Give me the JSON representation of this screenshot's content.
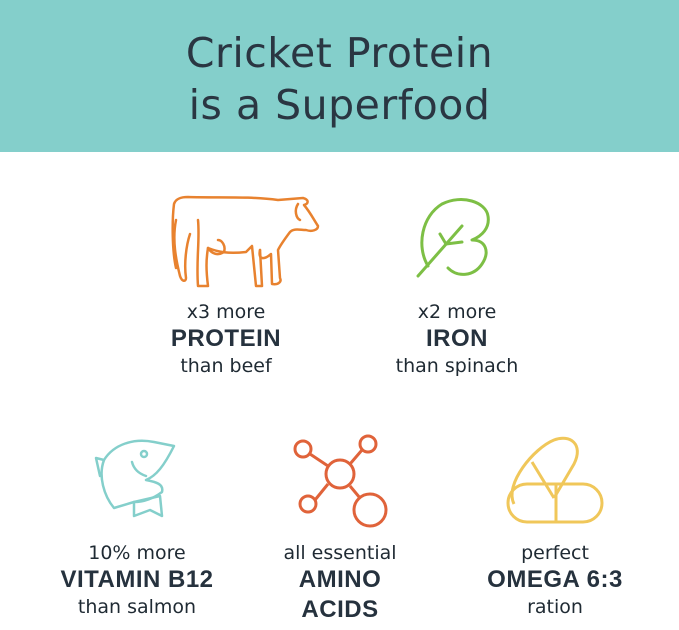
{
  "header": {
    "title_line1": "Cricket Protein",
    "title_line2": "is a Superfood",
    "background": "#84cfcb"
  },
  "items": [
    {
      "pre": "x3 more",
      "main": "PROTEIN",
      "post": "than beef",
      "icon": "cow-icon",
      "color": "#e8822f"
    },
    {
      "pre": "x2 more",
      "main": "IRON",
      "post": "than spinach",
      "icon": "leaf-icon",
      "color": "#7dbf45"
    },
    {
      "pre": "10% more",
      "main": "VITAMIN B12",
      "post": "than salmon",
      "icon": "fish-icon",
      "color": "#84cfcb"
    },
    {
      "pre": "all essential",
      "main": "AMINO",
      "post": "ACIDS",
      "icon": "molecule-icon",
      "color": "#e0633a"
    },
    {
      "pre": "perfect",
      "main": "OMEGA 6:3",
      "post": "ration",
      "icon": "capsule-icon",
      "color": "#f0c75a"
    }
  ]
}
